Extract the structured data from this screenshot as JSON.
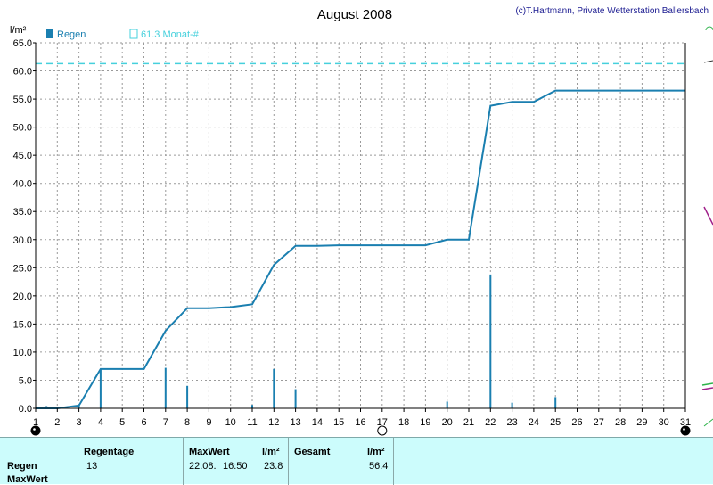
{
  "chart_data": {
    "type": "bar+line",
    "title": "August 2008",
    "credit": "(c)T.Hartmann, Private Wetterstation Ballersbach",
    "ylabel": "l/m²",
    "ylim": [
      0,
      65
    ],
    "yticks": [
      "0.0",
      "5.0",
      "10.0",
      "15.0",
      "20.0",
      "25.0",
      "30.0",
      "35.0",
      "40.0",
      "45.0",
      "50.0",
      "55.0",
      "60.0",
      "65.0"
    ],
    "xlim": [
      1,
      31
    ],
    "xticks": [
      "1",
      "2",
      "3",
      "4",
      "5",
      "6",
      "7",
      "8",
      "9",
      "10",
      "11",
      "12",
      "13",
      "14",
      "15",
      "16",
      "17",
      "18",
      "19",
      "20",
      "21",
      "22",
      "23",
      "24",
      "25",
      "26",
      "27",
      "28",
      "29",
      "30",
      "31"
    ],
    "grid": true,
    "legend": [
      {
        "label": "Regen",
        "color": "#1a7fb0"
      },
      {
        "label": "61.3 Monat-#",
        "color": "#46d0dc"
      }
    ],
    "reference_line": {
      "value": 61.3,
      "color": "#46d0dc"
    },
    "bars": {
      "name": "Regen",
      "color": "#1a7fb0",
      "points": [
        {
          "x": 1.5,
          "y": 0.4
        },
        {
          "x": 3,
          "y": 0.4
        },
        {
          "x": 4,
          "y": 7.0
        },
        {
          "x": 7,
          "y": 7.2
        },
        {
          "x": 8,
          "y": 4.0
        },
        {
          "x": 11,
          "y": 0.6
        },
        {
          "x": 12,
          "y": 7.0
        },
        {
          "x": 13,
          "y": 3.4
        },
        {
          "x": 20,
          "y": 1.2
        },
        {
          "x": 22,
          "y": 23.8
        },
        {
          "x": 23,
          "y": 1.0
        },
        {
          "x": 25,
          "y": 2.0
        }
      ]
    },
    "cumulative": {
      "color": "#1a7fb0",
      "points": [
        [
          1,
          0
        ],
        [
          2,
          0
        ],
        [
          3,
          0.5
        ],
        [
          4,
          7.0
        ],
        [
          5,
          7.0
        ],
        [
          6,
          7.0
        ],
        [
          7,
          13.8
        ],
        [
          8,
          17.8
        ],
        [
          9,
          17.8
        ],
        [
          10,
          18.0
        ],
        [
          11,
          18.5
        ],
        [
          12,
          25.5
        ],
        [
          13,
          28.9
        ],
        [
          14,
          28.9
        ],
        [
          15,
          29.0
        ],
        [
          16,
          29.0
        ],
        [
          17,
          29.0
        ],
        [
          18,
          29.0
        ],
        [
          19,
          29.0
        ],
        [
          20,
          30.0
        ],
        [
          21,
          30.0
        ],
        [
          22,
          53.8
        ],
        [
          23,
          54.5
        ],
        [
          24,
          54.5
        ],
        [
          25,
          56.5
        ],
        [
          26,
          56.5
        ],
        [
          27,
          56.5
        ],
        [
          28,
          56.5
        ],
        [
          29,
          56.5
        ],
        [
          30,
          56.5
        ],
        [
          31,
          56.5
        ]
      ]
    },
    "moon_markers": [
      {
        "x": 1,
        "phase": "new"
      },
      {
        "x": 17,
        "phase": "full"
      },
      {
        "x": 31,
        "phase": "new"
      }
    ]
  },
  "summary": {
    "row_labels": [
      "Regen",
      "MaxWert"
    ],
    "headers": {
      "regentage": "Regentage",
      "maxwert": "MaxWert",
      "maxwert_unit": "l/m²",
      "gesamt": "Gesamt",
      "gesamt_unit": "l/m²"
    },
    "values": {
      "regentage": "13",
      "maxwert_date": "22.08.",
      "maxwert_time": "16:50",
      "maxwert_value": "23.8",
      "gesamt": "56.4"
    }
  },
  "colors": {
    "grid": "#9a9a9a",
    "axis": "#000000",
    "edge_green": "#2db34a",
    "edge_purple": "#a0208a"
  }
}
